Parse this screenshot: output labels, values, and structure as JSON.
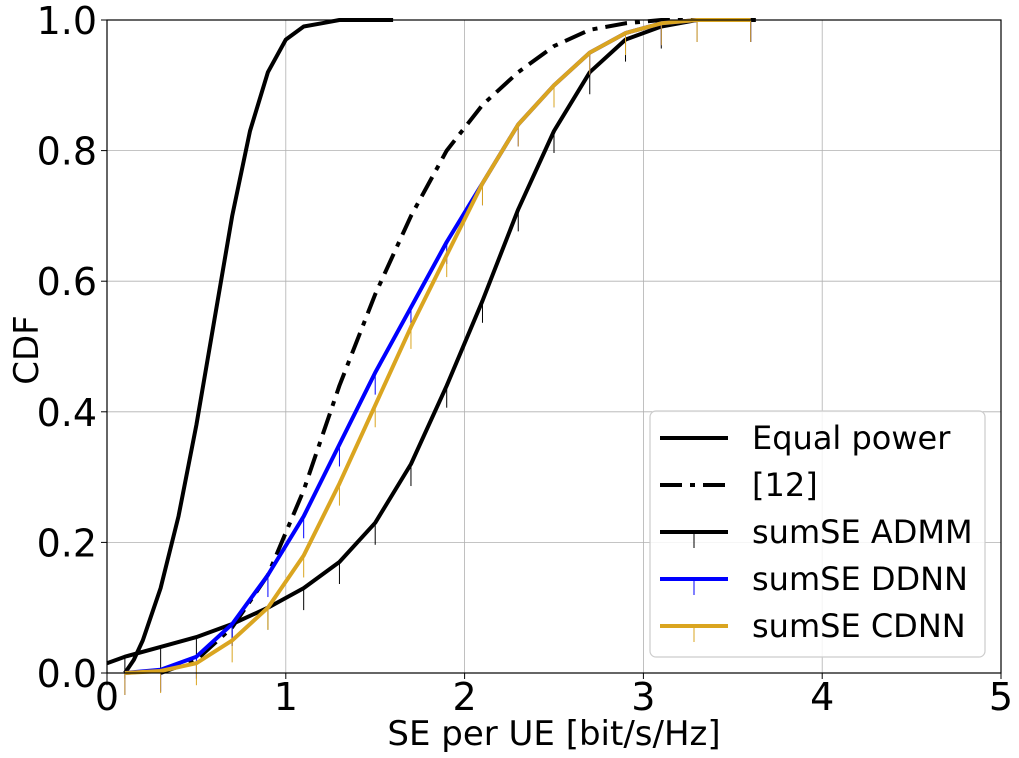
{
  "chart_data": {
    "type": "line",
    "xlabel": "SE per UE [bit/s/Hz]",
    "ylabel": "CDF",
    "xlim": [
      0,
      5
    ],
    "ylim": [
      0,
      1
    ],
    "x_ticks": [
      "0",
      "1",
      "2",
      "3",
      "4",
      "5"
    ],
    "y_ticks": [
      "0.0",
      "0.2",
      "0.4",
      "0.6",
      "0.8",
      "1.0"
    ],
    "grid": true,
    "legend_position": "lower-right",
    "series": [
      {
        "name": "Equal power",
        "color": "#000000",
        "style": "solid",
        "marker": "none",
        "x": [
          0.1,
          0.15,
          0.2,
          0.3,
          0.4,
          0.5,
          0.6,
          0.7,
          0.8,
          0.9,
          1.0,
          1.1,
          1.2,
          1.3,
          1.6
        ],
        "y": [
          0.0,
          0.02,
          0.05,
          0.13,
          0.24,
          0.38,
          0.54,
          0.7,
          0.83,
          0.92,
          0.97,
          0.99,
          0.995,
          1.0,
          1.0
        ]
      },
      {
        "name": "[12]",
        "color": "#000000",
        "style": "dashdot",
        "marker": "none",
        "x": [
          0.3,
          0.5,
          0.7,
          0.9,
          1.1,
          1.3,
          1.5,
          1.7,
          1.9,
          2.1,
          2.3,
          2.5,
          2.7,
          2.9,
          3.1,
          3.65
        ],
        "y": [
          0.0,
          0.02,
          0.07,
          0.15,
          0.28,
          0.44,
          0.58,
          0.7,
          0.8,
          0.87,
          0.92,
          0.96,
          0.985,
          0.995,
          1.0,
          1.0
        ]
      },
      {
        "name": "sumSE ADMM",
        "color": "#000000",
        "style": "solid",
        "marker": "tick",
        "x": [
          0.0,
          0.1,
          0.3,
          0.5,
          0.7,
          0.9,
          1.1,
          1.3,
          1.5,
          1.7,
          1.9,
          2.1,
          2.3,
          2.5,
          2.7,
          2.9,
          3.1,
          3.3,
          3.6
        ],
        "y": [
          0.015,
          0.025,
          0.04,
          0.055,
          0.075,
          0.1,
          0.13,
          0.17,
          0.23,
          0.32,
          0.44,
          0.57,
          0.71,
          0.83,
          0.92,
          0.97,
          0.99,
          1.0,
          1.0
        ]
      },
      {
        "name": "sumSE DDNN",
        "color": "#0000ff",
        "style": "solid",
        "marker": "tick",
        "x": [
          0.1,
          0.3,
          0.5,
          0.7,
          0.9,
          1.1,
          1.3,
          1.5,
          1.7,
          1.9,
          2.1,
          2.3,
          2.5,
          2.7,
          2.9,
          3.1,
          3.3,
          3.6
        ],
        "y": [
          0.0,
          0.005,
          0.025,
          0.075,
          0.15,
          0.24,
          0.35,
          0.46,
          0.56,
          0.66,
          0.75,
          0.84,
          0.9,
          0.95,
          0.98,
          0.995,
          1.0,
          1.0
        ]
      },
      {
        "name": "sumSE CDNN",
        "color": "#daa520",
        "style": "solid",
        "marker": "tick",
        "x": [
          0.1,
          0.3,
          0.5,
          0.7,
          0.9,
          1.1,
          1.3,
          1.5,
          1.7,
          1.9,
          2.1,
          2.3,
          2.5,
          2.7,
          2.9,
          3.1,
          3.3,
          3.6
        ],
        "y": [
          0.0,
          0.003,
          0.015,
          0.05,
          0.1,
          0.18,
          0.29,
          0.41,
          0.53,
          0.64,
          0.75,
          0.84,
          0.9,
          0.95,
          0.98,
          0.995,
          1.0,
          1.0
        ]
      }
    ]
  }
}
